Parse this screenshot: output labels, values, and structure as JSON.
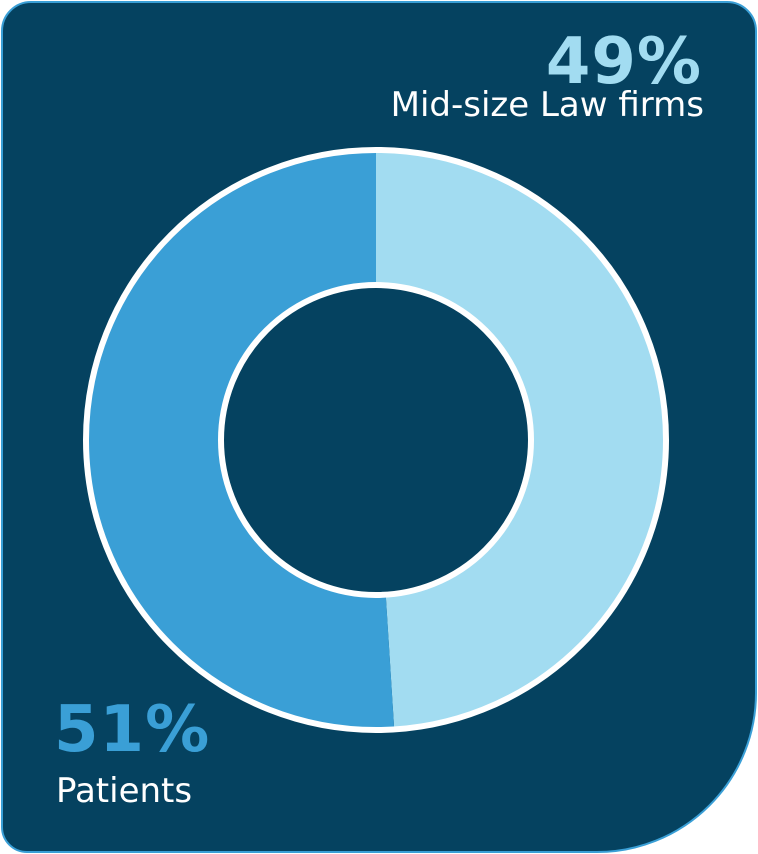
{
  "colors": {
    "background": "#054260",
    "border": "#3a9fd6",
    "slice_law_firms": "#a2dcf1",
    "slice_patients": "#3a9fd6",
    "ring_outline": "#ffffff"
  },
  "chart_data": {
    "type": "pie",
    "variant": "donut",
    "series": [
      {
        "name": "Mid-size Law firms",
        "value": 49,
        "label": "49%"
      },
      {
        "name": "Patients",
        "value": 51,
        "label": "51%"
      }
    ],
    "legend": "none"
  }
}
